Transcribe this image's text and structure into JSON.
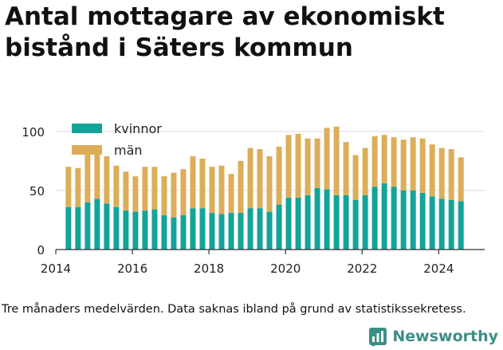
{
  "title": "Antal mottagare av ekonomiskt bistånd i Säters kommun",
  "caption": "Tre månaders medelvärden. Data saknas ibland på grund av statistikssekretess.",
  "brand": {
    "name": "Newsworthy",
    "icon": "newsworthy-logo-icon"
  },
  "colors": {
    "kvinnor": "#14a39a",
    "man": "#dcae5a",
    "grid": "#d9d9d9",
    "axis": "#333333"
  },
  "chart_data": {
    "type": "bar",
    "stacked": true,
    "title": "",
    "xlabel": "",
    "ylabel": "",
    "ylim": [
      0,
      110
    ],
    "xlim": [
      2014,
      2025.2
    ],
    "grid": true,
    "legend_position": "top-left",
    "x_ticks": [
      2014,
      2016,
      2018,
      2020,
      2022,
      2024
    ],
    "y_ticks": [
      0,
      50,
      100
    ],
    "x": [
      2014.33,
      2014.58,
      2014.83,
      2015.08,
      2015.33,
      2015.58,
      2015.83,
      2016.08,
      2016.33,
      2016.58,
      2016.83,
      2017.08,
      2017.33,
      2017.58,
      2017.83,
      2018.08,
      2018.33,
      2018.58,
      2018.83,
      2019.08,
      2019.33,
      2019.58,
      2019.83,
      2020.08,
      2020.33,
      2020.58,
      2020.83,
      2021.08,
      2021.33,
      2021.58,
      2021.83,
      2022.08,
      2022.33,
      2022.58,
      2022.83,
      2023.08,
      2023.33,
      2023.58,
      2023.83,
      2024.08,
      2024.33,
      2024.58
    ],
    "series": [
      {
        "name": "kvinnor",
        "values": [
          36,
          36,
          40,
          43,
          39,
          36,
          33,
          32,
          33,
          34,
          29,
          27,
          29,
          35,
          35,
          31,
          30,
          31,
          31,
          35,
          35,
          32,
          38,
          44,
          44,
          46,
          52,
          51,
          46,
          46,
          42,
          46,
          53,
          56,
          53,
          50,
          50,
          48,
          45,
          43,
          42,
          41
        ]
      },
      {
        "name": "män",
        "values": [
          34,
          33,
          42,
          40,
          40,
          35,
          33,
          30,
          37,
          36,
          33,
          38,
          39,
          44,
          42,
          39,
          41,
          33,
          44,
          51,
          50,
          47,
          49,
          53,
          54,
          48,
          42,
          52,
          58,
          45,
          38,
          40,
          43,
          41,
          42,
          43,
          45,
          46,
          44,
          43,
          43,
          37
        ]
      }
    ]
  }
}
